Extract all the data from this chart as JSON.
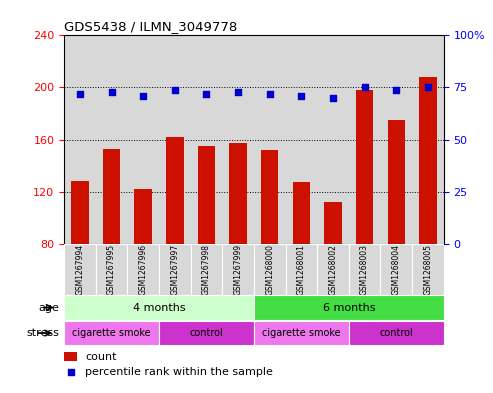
{
  "title": "GDS5438 / ILMN_3049778",
  "samples": [
    "GSM1267994",
    "GSM1267995",
    "GSM1267996",
    "GSM1267997",
    "GSM1267998",
    "GSM1267999",
    "GSM1268000",
    "GSM1268001",
    "GSM1268002",
    "GSM1268003",
    "GSM1268004",
    "GSM1268005"
  ],
  "bar_values": [
    128,
    153,
    122,
    162,
    155,
    157,
    152,
    127,
    112,
    198,
    175,
    208
  ],
  "percentile_values": [
    72,
    73,
    71,
    74,
    72,
    73,
    72,
    71,
    70,
    75,
    74,
    75
  ],
  "bar_color": "#cc1100",
  "dot_color": "#0000cc",
  "left_ylim": [
    80,
    240
  ],
  "left_yticks": [
    80,
    120,
    160,
    200,
    240
  ],
  "right_ylim": [
    0,
    100
  ],
  "right_yticks": [
    0,
    25,
    50,
    75,
    100
  ],
  "right_yticklabels": [
    "0",
    "25",
    "50",
    "75",
    "100%"
  ],
  "age_groups": [
    {
      "label": "4 months",
      "start": 0,
      "end": 6,
      "color": "#ccffcc"
    },
    {
      "label": "6 months",
      "start": 6,
      "end": 12,
      "color": "#44dd44"
    }
  ],
  "stress_groups": [
    {
      "label": "cigarette smoke",
      "start": 0,
      "end": 3,
      "color": "#ee77ee"
    },
    {
      "label": "control",
      "start": 3,
      "end": 6,
      "color": "#cc33cc"
    },
    {
      "label": "cigarette smoke",
      "start": 6,
      "end": 9,
      "color": "#ee77ee"
    },
    {
      "label": "control",
      "start": 9,
      "end": 12,
      "color": "#cc33cc"
    }
  ],
  "legend_count_color": "#cc1100",
  "legend_dot_color": "#0000cc",
  "bar_width": 0.55,
  "col_bg_color": "#d8d8d8",
  "grid_linestyle": ":"
}
